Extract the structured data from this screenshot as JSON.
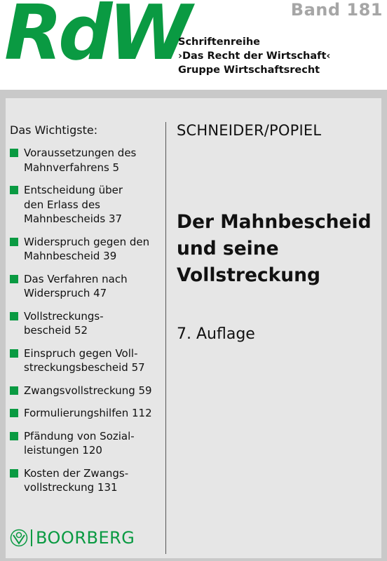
{
  "header": {
    "logo_main": "Rd",
    "logo_w": "W",
    "band_label": "Band 181",
    "series_lines": [
      "Schriftenreihe",
      "›Das Recht der Wirtschaft‹",
      "Gruppe Wirtschaftsrecht"
    ]
  },
  "toc": {
    "heading": "Das Wichtigste:",
    "items": [
      {
        "lines": [
          "Voraussetzungen des",
          "Mahnverfahrens  5"
        ]
      },
      {
        "lines": [
          "Entscheidung über",
          "den Erlass des",
          "Mahnbescheids  37"
        ]
      },
      {
        "lines": [
          "Widerspruch gegen den",
          "Mahnbescheid  39"
        ]
      },
      {
        "lines": [
          "Das Verfahren nach",
          "Widerspruch  47"
        ]
      },
      {
        "lines": [
          "Vollstreckungs-",
          "bescheid  52"
        ]
      },
      {
        "lines": [
          "Einspruch gegen Voll-",
          "streckungsbescheid  57"
        ]
      },
      {
        "lines": [
          "Zwangsvollstreckung  59"
        ]
      },
      {
        "lines": [
          "Formulierungshilfen  112"
        ]
      },
      {
        "lines": [
          "Pfändung von Sozial-",
          "leistungen  120"
        ]
      },
      {
        "lines": [
          "Kosten der Zwangs-",
          "vollstreckung  131"
        ]
      }
    ]
  },
  "book": {
    "authors": "SCHNEIDER/POPIEL",
    "title_lines": [
      "Der Mahnbescheid",
      "und seine",
      "Vollstreckung"
    ],
    "edition": "7. Auflage"
  },
  "publisher": {
    "name": "BOORBERG",
    "icon": "boorberg-logo-icon",
    "color": "#0a9a42"
  },
  "colors": {
    "accent": "#0a9a42",
    "band": "#a6a6a6",
    "panel": "#e6e6e6"
  }
}
